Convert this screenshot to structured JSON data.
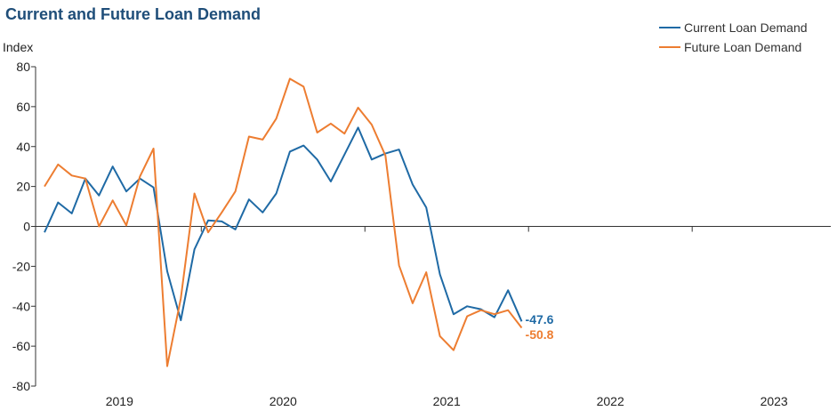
{
  "chart_data": {
    "type": "line",
    "title": "Current and Future Loan Demand",
    "ylabel": "Index",
    "ylim": [
      -80,
      80
    ],
    "yticks": [
      80,
      60,
      40,
      20,
      0,
      -20,
      -40,
      -60,
      -80
    ],
    "x_start_year": 2019,
    "x_start_month": 1,
    "x_axis_labels": [
      "2019",
      "2020",
      "2021",
      "2022",
      "2023"
    ],
    "series": [
      {
        "name": "Current Loan Demand",
        "color": "#1f6aa5",
        "end_label": "-47.6",
        "values": [
          -3,
          12,
          6.5,
          24,
          15.5,
          30,
          17.5,
          24,
          19.5,
          -22.5,
          -47,
          -11.5,
          3,
          2.5,
          -1.5,
          13.5,
          7,
          16.5,
          37.5,
          40.5,
          33.5,
          22.5,
          36,
          49.5,
          33.5,
          36.5,
          38.5,
          21,
          9.5,
          -24,
          -44,
          -40,
          -41.5,
          -45.5,
          -32,
          -47.6
        ]
      },
      {
        "name": "Future Loan Demand",
        "color": "#ed7d31",
        "end_label": "-50.8",
        "values": [
          20,
          31,
          25.5,
          24,
          0,
          13,
          0.5,
          25,
          39,
          -70,
          -36,
          16.5,
          -3,
          7,
          17.5,
          45,
          43.5,
          54,
          74,
          70,
          47,
          51.5,
          46.5,
          59.5,
          51,
          35.5,
          -19.5,
          -38.5,
          -23,
          -55,
          -62,
          -45,
          -42,
          -44,
          -42,
          -50.8
        ]
      }
    ],
    "legend_position": "top-right",
    "grid": false
  }
}
